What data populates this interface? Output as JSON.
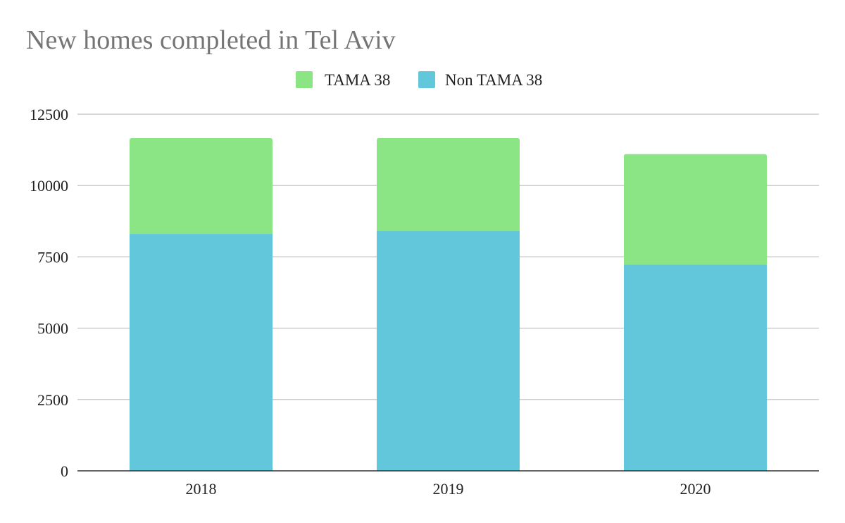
{
  "chart_data": {
    "type": "bar",
    "stacked": true,
    "title": "New homes completed in Tel Aviv",
    "xlabel": "",
    "ylabel": "",
    "categories": [
      "2018",
      "2019",
      "2020"
    ],
    "series": [
      {
        "name": "Non TAMA 38",
        "values": [
          8300,
          8400,
          7230
        ],
        "color": "#63c7db"
      },
      {
        "name": "TAMA 38",
        "values": [
          3360,
          3260,
          3870
        ],
        "color": "#8be585"
      }
    ],
    "legend_order": [
      "TAMA 38",
      "Non TAMA 38"
    ],
    "ylim": [
      0,
      12500
    ],
    "yticks": [
      "0",
      "2500",
      "5000",
      "7500",
      "10000",
      "12500"
    ],
    "grid": true,
    "legend_position": "top-center"
  }
}
